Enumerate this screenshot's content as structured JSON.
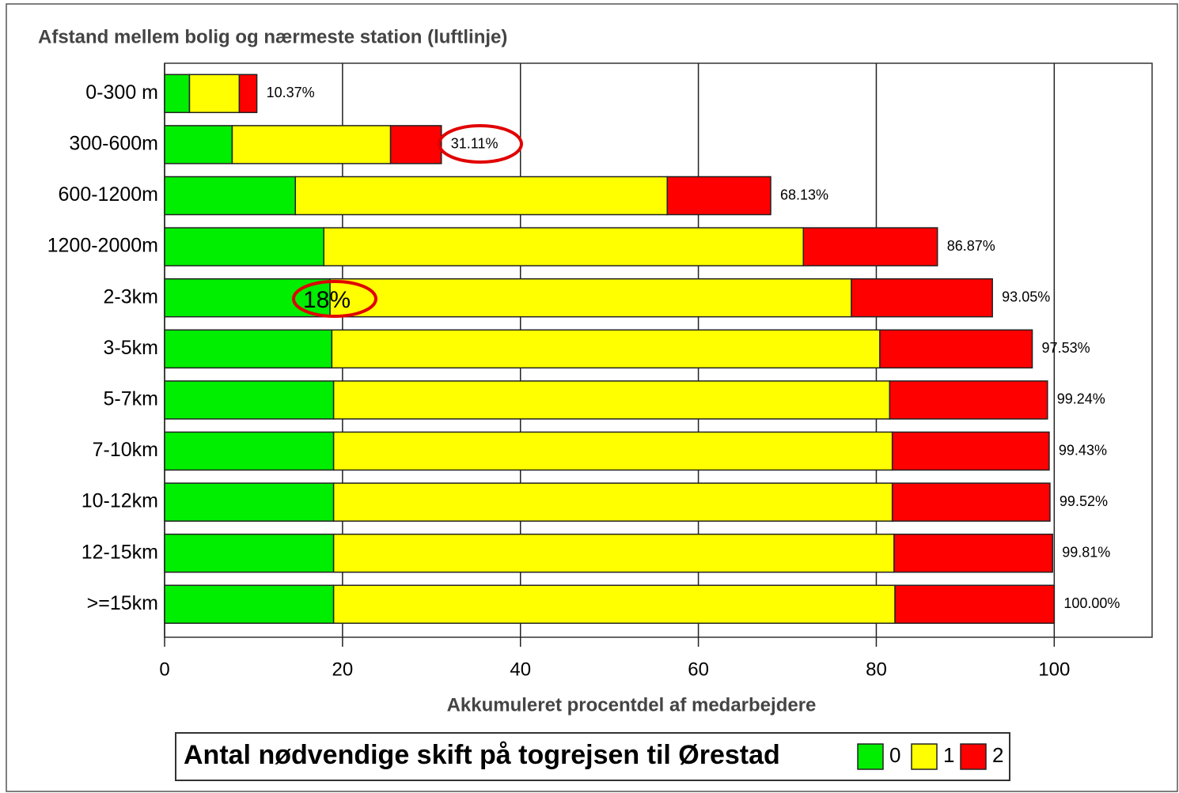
{
  "chart_data": {
    "type": "stacked_barh",
    "title": "Afstand mellem bolig og nærmeste station (luftlinje)",
    "xlabel": "Akkumuleret procentdel af medarbejdere",
    "categories": [
      "0-300 m",
      "300-600m",
      "600-1200m",
      "1200-2000m",
      "2-3km",
      "3-5km",
      "5-7km",
      "7-10km",
      "10-12km",
      "12-15km",
      ">=15km"
    ],
    "series": [
      {
        "name": "0",
        "color": "#00ee00",
        "values": [
          2.8,
          7.6,
          14.7,
          17.9,
          18.6,
          18.8,
          19.0,
          19.0,
          19.0,
          19.0,
          19.0
        ]
      },
      {
        "name": "1",
        "color": "#ffff00",
        "values": [
          5.6,
          17.8,
          41.8,
          53.9,
          58.6,
          61.6,
          62.5,
          62.8,
          62.8,
          63.0,
          63.1
        ]
      },
      {
        "name": "2",
        "color": "#ff0000",
        "values": [
          1.97,
          5.71,
          11.63,
          15.07,
          15.85,
          17.13,
          17.74,
          17.63,
          17.72,
          17.81,
          17.9
        ]
      }
    ],
    "total_labels": [
      "10.37%",
      "31.11%",
      "68.13%",
      "86.87%",
      "93.05%",
      "97.53%",
      "99.24%",
      "99.43%",
      "99.52%",
      "99.81%",
      "100.00%"
    ],
    "xlim": [
      0,
      111
    ],
    "xticks": [
      0,
      20,
      40,
      60,
      80,
      100
    ],
    "grid": true,
    "legend_title": "Antal nødvendige skift på togrejsen til Ørestad",
    "legend_position": "bottom",
    "annotations": [
      {
        "text": "18%"
      }
    ]
  }
}
